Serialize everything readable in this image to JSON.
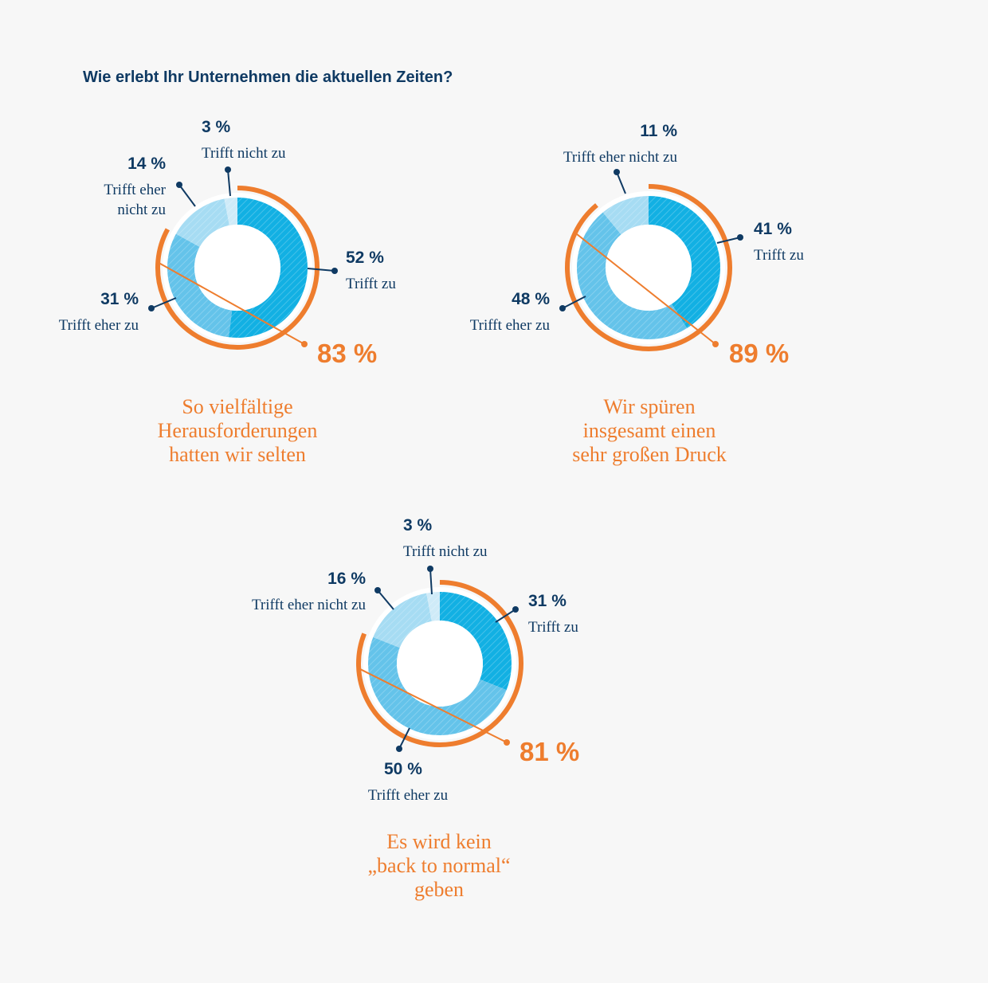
{
  "question": "Wie erlebt Ihr Unternehmen die aktuellen Zeiten?",
  "colors": {
    "trifft_zu": "#12b0e3",
    "trifft_eher_zu": "#64c3ea",
    "trifft_eher_nicht_zu": "#a6dcf3",
    "trifft_nicht_zu": "#cfebf8",
    "accent": "#ee7d2e",
    "text": "#0f3a63"
  },
  "chart_data": [
    {
      "type": "pie",
      "title": "",
      "caption": [
        "So vielfältige",
        "Herausforderungen",
        "hatten wir selten"
      ],
      "total_label": "83 %",
      "total_value": 83,
      "slices": [
        {
          "label": "Trifft zu",
          "value": 52,
          "value_label": "52 %"
        },
        {
          "label": "Trifft eher zu",
          "value": 31,
          "value_label": "31 %"
        },
        {
          "label": "Trifft eher nicht zu",
          "value": 14,
          "value_label": "14 %"
        },
        {
          "label": "Trifft nicht zu",
          "value": 3,
          "value_label": "3 %"
        }
      ]
    },
    {
      "type": "pie",
      "title": "",
      "caption": [
        "Wir spüren",
        "insgesamt einen",
        "sehr großen Druck"
      ],
      "total_label": "89 %",
      "total_value": 89,
      "slices": [
        {
          "label": "Trifft zu",
          "value": 41,
          "value_label": "41 %"
        },
        {
          "label": "Trifft eher zu",
          "value": 48,
          "value_label": "48 %"
        },
        {
          "label": "Trifft eher nicht zu",
          "value": 11,
          "value_label": "11 %"
        }
      ]
    },
    {
      "type": "pie",
      "title": "",
      "caption": [
        "Es wird kein",
        "„back to normal“",
        "geben"
      ],
      "total_label": "81 %",
      "total_value": 81,
      "slices": [
        {
          "label": "Trifft zu",
          "value": 31,
          "value_label": "31 %"
        },
        {
          "label": "Trifft eher zu",
          "value": 50,
          "value_label": "50 %"
        },
        {
          "label": "Trifft eher nicht zu",
          "value": 16,
          "value_label": "16 %"
        },
        {
          "label": "Trifft nicht zu",
          "value": 3,
          "value_label": "3 %"
        }
      ]
    }
  ]
}
